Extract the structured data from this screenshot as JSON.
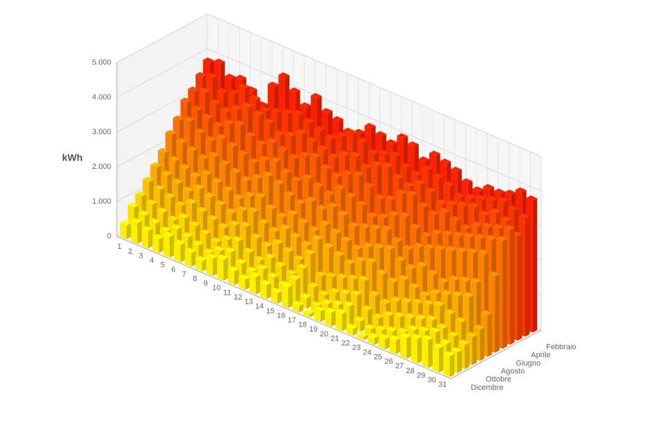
{
  "chart_data": {
    "type": "bar3d",
    "y_label": "kWh",
    "categories": [
      "1",
      "2",
      "3",
      "4",
      "5",
      "6",
      "7",
      "8",
      "9",
      "10",
      "11",
      "12",
      "13",
      "14",
      "15",
      "16",
      "17",
      "18",
      "19",
      "20",
      "21",
      "22",
      "23",
      "24",
      "25",
      "26",
      "27",
      "28",
      "29",
      "30",
      "31"
    ],
    "depth_categories": [
      null,
      "Febbraio",
      null,
      "Aprile",
      null,
      "Giugno",
      null,
      "Agosto",
      null,
      "Ottobre",
      null,
      "Dicembre"
    ],
    "ylim": [
      0,
      5000
    ],
    "yticks": [
      0,
      {
        "value": 1000,
        "label": "1.000"
      },
      {
        "value": 2000,
        "label": "2.000"
      },
      {
        "value": 3000,
        "label": "3.000"
      },
      {
        "value": 4000,
        "label": "4.000"
      },
      {
        "value": 5000,
        "label": "5.000"
      }
    ],
    "grid": true,
    "series": [
      {
        "color": "#ff2000",
        "values": [
          3800,
          3900,
          3600,
          3700,
          3500,
          3200,
          3900,
          4300,
          4000,
          3700,
          4100,
          3800,
          3700,
          3500,
          3600,
          3900,
          3800,
          3700,
          4000,
          3900,
          3600,
          3900,
          3800,
          3700,
          3500,
          3400,
          3600,
          3600,
          3700,
          3900,
          3800
        ]
      },
      {
        "color": "#ff3300",
        "values": [
          3500,
          3600,
          3300,
          3400,
          3700,
          3500,
          3300,
          3400,
          3500,
          3600,
          3500,
          3400,
          3300,
          3500,
          3700,
          3600,
          3400,
          3500,
          3600,
          3400,
          3300,
          3600,
          3500,
          3400,
          3200,
          3300,
          3400,
          3500,
          3600,
          3500,
          3400
        ]
      },
      {
        "color": "#ff4600",
        "values": [
          3200,
          3300,
          3100,
          3000,
          3200,
          3400,
          3300,
          3200,
          3000,
          3100,
          3300,
          3200,
          3100,
          3000,
          3200,
          3300,
          3100,
          3300,
          3400,
          3200,
          3100,
          3300,
          3200,
          3000,
          3100,
          3200,
          3300,
          3200,
          3400,
          3300,
          3000
        ]
      },
      {
        "color": "#ff5a00",
        "values": [
          3000,
          2900,
          2800,
          2700,
          2900,
          3000,
          2800,
          2700,
          2900,
          2800,
          2700,
          2900,
          3000,
          2800,
          2700,
          2900,
          3000,
          2800,
          2600,
          2700,
          3000,
          3100,
          2900,
          2800,
          3000,
          2900,
          2800,
          3000,
          3100,
          3200,
          3300
        ]
      },
      {
        "color": "#ff6e00",
        "values": [
          2600,
          2700,
          2500,
          2400,
          2600,
          2500,
          2400,
          2300,
          2500,
          2600,
          2400,
          2300,
          2500,
          2400,
          2300,
          2600,
          2500,
          2400,
          2200,
          2300,
          2500,
          2600,
          2400,
          2300,
          2500,
          2600,
          2700,
          2800,
          2900,
          3000,
          3100
        ]
      },
      {
        "color": "#ff8200",
        "values": [
          2300,
          2200,
          2100,
          2000,
          2200,
          2100,
          2000,
          1900,
          2100,
          2300,
          2200,
          2000,
          1900,
          2100,
          2000,
          2200,
          2100,
          1900,
          2000,
          2100,
          2200,
          2000,
          1900,
          2100,
          2200,
          2300,
          2400,
          2500,
          2600,
          2700,
          2200
        ]
      },
      {
        "color": "#ff9600",
        "values": [
          1900,
          1800,
          1700,
          1600,
          1800,
          1700,
          1600,
          1500,
          1700,
          1800,
          1600,
          1500,
          1700,
          1600,
          1500,
          1800,
          1700,
          1600,
          1500,
          1700,
          1800,
          1900,
          1700,
          1600,
          1800,
          1700,
          1600,
          1800,
          1900,
          2000,
          1200
        ]
      },
      {
        "color": "#ffaa00",
        "values": [
          1600,
          1500,
          1400,
          1300,
          1500,
          1400,
          1300,
          1200,
          1400,
          1500,
          1300,
          1200,
          1400,
          1300,
          1200,
          1500,
          1400,
          1300,
          1200,
          1400,
          1500,
          1300,
          1200,
          1400,
          1300,
          1200,
          1400,
          1500,
          1600,
          1700,
          900
        ]
      },
      {
        "color": "#ffbe00",
        "values": [
          1300,
          1200,
          1100,
          1000,
          1200,
          1100,
          1000,
          900,
          1100,
          1200,
          1000,
          900,
          1100,
          1000,
          900,
          1200,
          700,
          800,
          900,
          1000,
          1100,
          800,
          700,
          900,
          1000,
          1100,
          1200,
          1300,
          1200,
          1100,
          800
        ]
      },
      {
        "color": "#ffd200",
        "values": [
          1000,
          900,
          800,
          700,
          900,
          800,
          700,
          600,
          800,
          900,
          700,
          600,
          800,
          700,
          600,
          900,
          500,
          400,
          600,
          700,
          800,
          500,
          400,
          600,
          700,
          800,
          900,
          1000,
          900,
          800,
          700
        ]
      },
      {
        "color": "#ffe100",
        "values": [
          800,
          700,
          600,
          500,
          700,
          600,
          500,
          400,
          600,
          700,
          500,
          400,
          600,
          500,
          400,
          700,
          300,
          200,
          400,
          500,
          600,
          300,
          200,
          300,
          400,
          500,
          700,
          800,
          900,
          700,
          600
        ]
      },
      {
        "color": "#ffee00",
        "values": [
          400,
          600,
          500,
          400,
          600,
          500,
          400,
          300,
          500,
          600,
          400,
          300,
          500,
          400,
          300,
          600,
          200,
          100,
          300,
          400,
          500,
          200,
          100,
          200,
          300,
          400,
          600,
          700,
          800,
          700,
          600
        ]
      }
    ]
  }
}
